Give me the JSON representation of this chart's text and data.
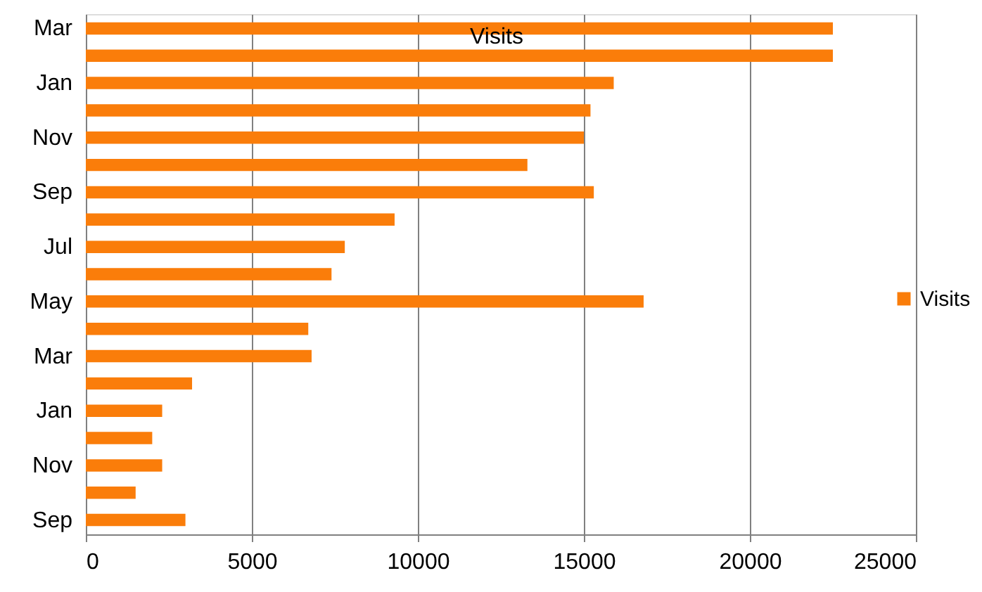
{
  "chart_data": {
    "type": "bar",
    "orientation": "horizontal",
    "title": "Visits",
    "categories": [
      "Mar",
      null,
      "Jan",
      null,
      "Nov",
      null,
      "Sep",
      null,
      "Jul",
      null,
      "May",
      null,
      "Mar",
      null,
      "Jan",
      null,
      "Nov",
      null,
      "Sep"
    ],
    "series": [
      {
        "name": "Visits",
        "color": "#fa7d0a",
        "values": [
          22500,
          22500,
          15900,
          15200,
          15000,
          13300,
          15300,
          9300,
          7800,
          7400,
          16800,
          6700,
          6800,
          3200,
          2300,
          2000,
          2300,
          1500,
          3000
        ]
      }
    ],
    "xlim": [
      0,
      25000
    ],
    "xticks": [
      0,
      5000,
      10000,
      15000,
      20000,
      25000
    ],
    "grid": "x",
    "legend": "right"
  }
}
